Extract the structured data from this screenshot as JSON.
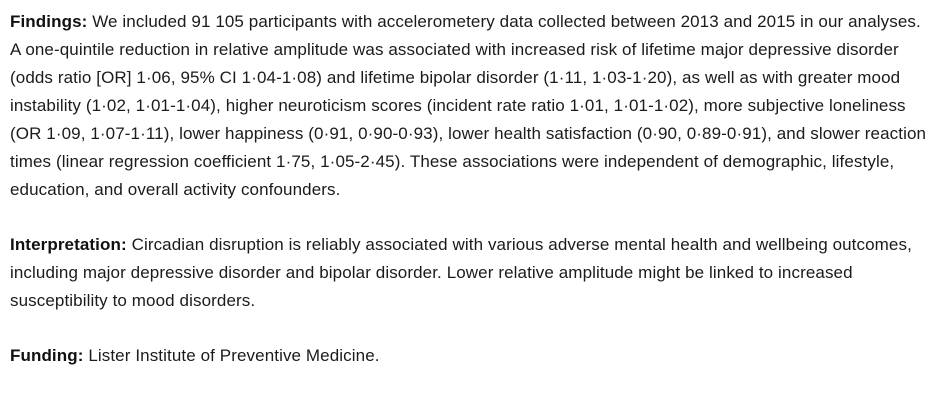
{
  "page": {
    "background_color": "#ffffff",
    "text_color": "#1b1b1b"
  },
  "abstract": {
    "sections": [
      {
        "label": "Findings:",
        "text": "We included 91 105 participants with accelerometery data collected between 2013 and 2015 in our analyses. A one-quintile reduction in relative amplitude was associated with increased risk of lifetime major depressive disorder (odds ratio [OR] 1·06, 95% CI 1·04-1·08) and lifetime bipolar disorder (1·11, 1·03-1·20), as well as with greater mood instability (1·02, 1·01-1·04), higher neuroticism scores (incident rate ratio 1·01, 1·01-1·02), more subjective loneliness (OR 1·09, 1·07-1·11), lower happiness (0·91, 0·90-0·93), lower health satisfaction (0·90, 0·89-0·91), and slower reaction times (linear regression coefficient 1·75, 1·05-2·45). These associations were independent of demographic, lifestyle, education, and overall activity confounders."
      },
      {
        "label": "Interpretation:",
        "text": "Circadian disruption is reliably associated with various adverse mental health and wellbeing outcomes, including major depressive disorder and bipolar disorder. Lower relative amplitude might be linked to increased susceptibility to mood disorders."
      },
      {
        "label": "Funding:",
        "text": "Lister Institute of Preventive Medicine."
      }
    ]
  }
}
